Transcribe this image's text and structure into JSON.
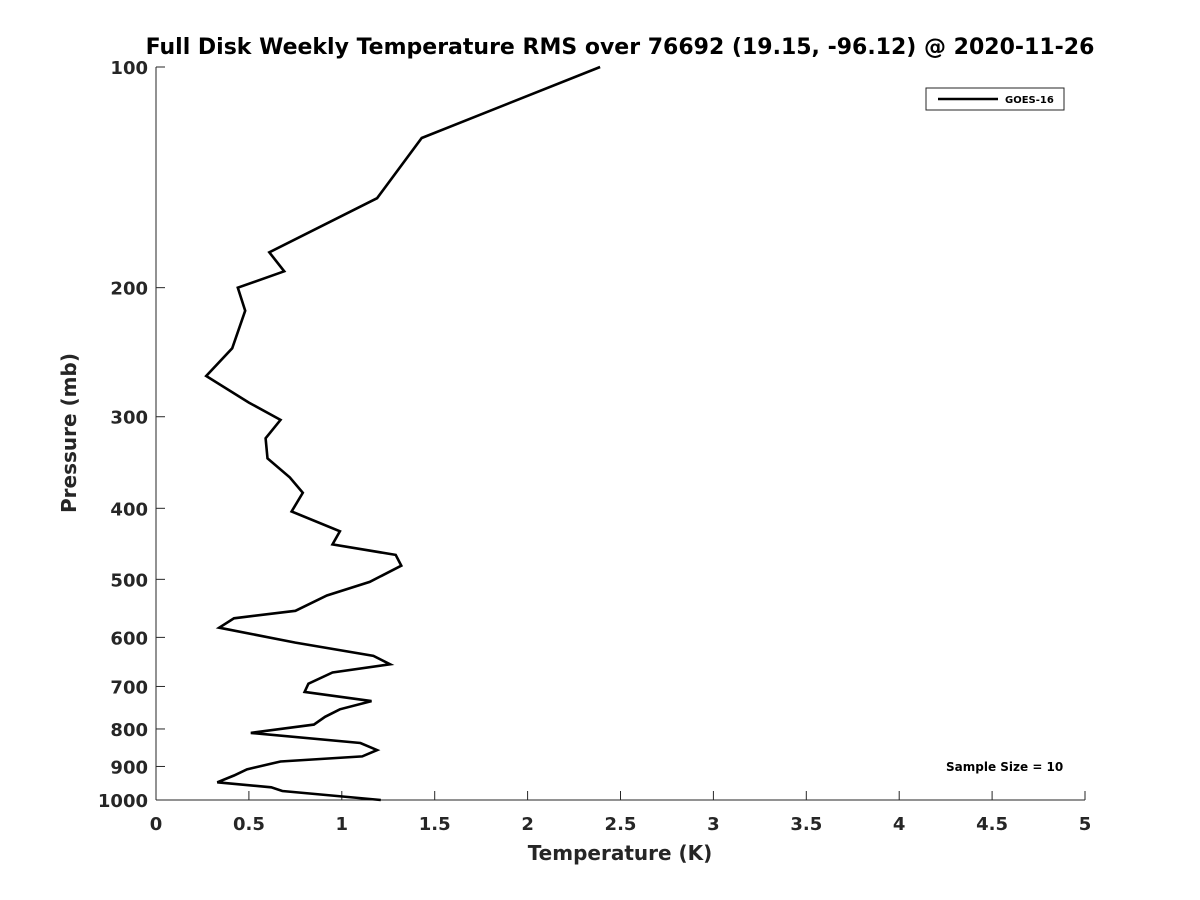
{
  "chart_data": {
    "type": "line",
    "title": "Full Disk Weekly Temperature RMS over 76692 (19.15, -96.12) @ 2020-11-26",
    "xlabel": "Temperature (K)",
    "ylabel": "Pressure (mb)",
    "xlim": [
      0,
      5
    ],
    "ylim": [
      100,
      1000
    ],
    "y_scale": "log",
    "y_reversed": true,
    "x_ticks": [
      "0",
      "0.5",
      "1",
      "1.5",
      "2",
      "2.5",
      "3",
      "3.5",
      "4",
      "4.5",
      "5"
    ],
    "y_ticks": [
      "100",
      "200",
      "300",
      "400",
      "500",
      "600",
      "700",
      "800",
      "900",
      "1000"
    ],
    "grid": false,
    "legend_position": "top-right",
    "annotation": "Sample Size = 10",
    "series": [
      {
        "name": "GOES-16",
        "color": "#000000",
        "points": [
          [
            2.39,
            100
          ],
          [
            1.43,
            125
          ],
          [
            1.19,
            151
          ],
          [
            0.61,
            179
          ],
          [
            0.69,
            190
          ],
          [
            0.44,
            200
          ],
          [
            0.48,
            215
          ],
          [
            0.41,
            242
          ],
          [
            0.27,
            264
          ],
          [
            0.5,
            287
          ],
          [
            0.67,
            303
          ],
          [
            0.59,
            321
          ],
          [
            0.6,
            342
          ],
          [
            0.72,
            363
          ],
          [
            0.79,
            381
          ],
          [
            0.73,
            404
          ],
          [
            0.99,
            430
          ],
          [
            0.95,
            448
          ],
          [
            1.29,
            463
          ],
          [
            1.32,
            479
          ],
          [
            1.15,
            504
          ],
          [
            0.92,
            526
          ],
          [
            0.75,
            552
          ],
          [
            0.42,
            565
          ],
          [
            0.34,
            582
          ],
          [
            0.75,
            610
          ],
          [
            1.17,
            636
          ],
          [
            1.26,
            653
          ],
          [
            0.95,
            670
          ],
          [
            0.82,
            694
          ],
          [
            0.8,
            712
          ],
          [
            1.16,
            733
          ],
          [
            0.99,
            752
          ],
          [
            0.91,
            770
          ],
          [
            0.85,
            789
          ],
          [
            0.51,
            810
          ],
          [
            1.1,
            836
          ],
          [
            1.19,
            855
          ],
          [
            1.11,
            872
          ],
          [
            0.67,
            886
          ],
          [
            0.49,
            908
          ],
          [
            0.42,
            926
          ],
          [
            0.33,
            946
          ],
          [
            0.62,
            961
          ],
          [
            0.68,
            972
          ],
          [
            1.21,
            1000
          ]
        ]
      }
    ]
  }
}
